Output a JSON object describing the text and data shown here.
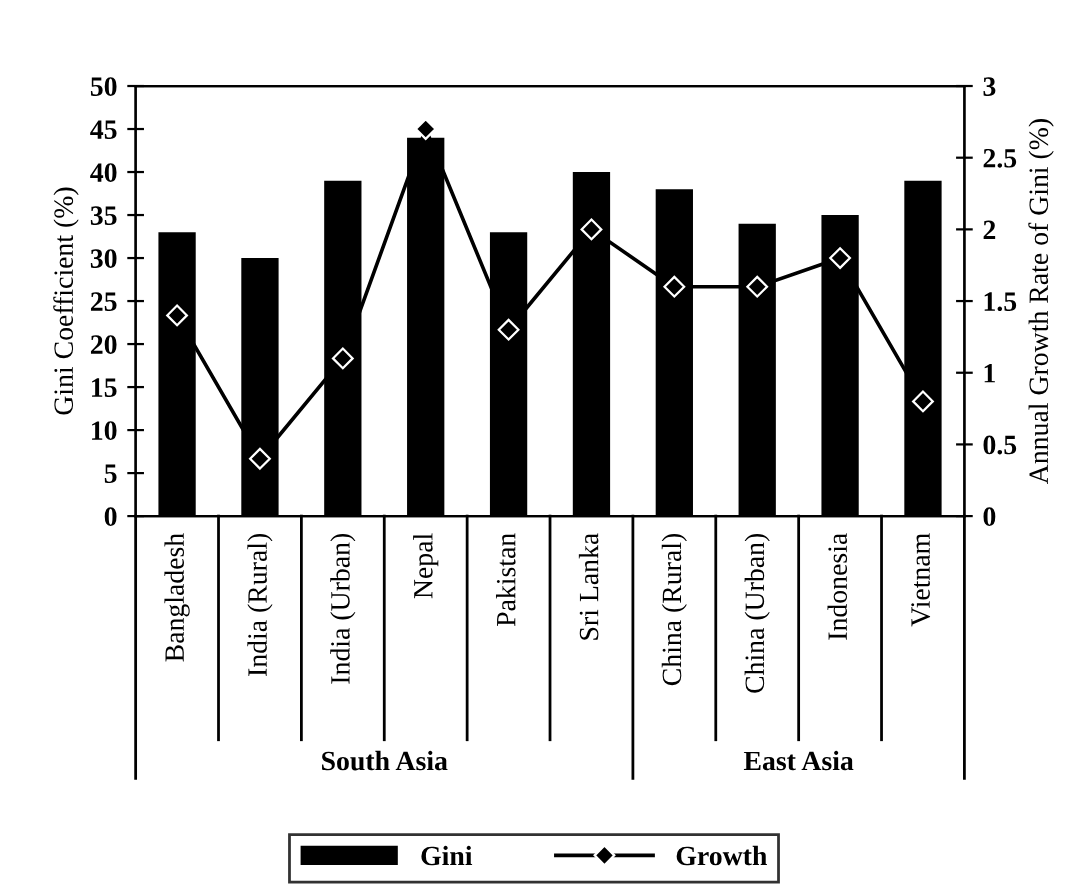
{
  "chart_data": {
    "type": "bar",
    "ylabel": "Gini Coefficient (%)",
    "y2label": "Annual Growth Rate of Gini (%)",
    "categories": [
      "Bangladesh",
      "India (Rural)",
      "India (Urban)",
      "Nepal",
      "Pakistan",
      "Sri Lanka",
      "China (Rural)",
      "China (Urban)",
      "Indonesia",
      "Vietnam"
    ],
    "series": [
      {
        "name": "Gini",
        "color": "#000000",
        "values": [
          33,
          30,
          39,
          44,
          33,
          40,
          38,
          34,
          35,
          39
        ]
      },
      {
        "name": "Growth",
        "type": "line",
        "axis": "y2",
        "color": "#000000",
        "marker": "diamond",
        "values": [
          1.4,
          0.4,
          1.1,
          2.7,
          1.3,
          2.0,
          1.6,
          1.6,
          1.8,
          0.8
        ]
      }
    ],
    "ylim": [
      0,
      50
    ],
    "yticks": [
      0,
      5,
      10,
      15,
      20,
      25,
      30,
      35,
      40,
      45,
      50
    ],
    "y2lim": [
      0,
      3
    ],
    "y2ticks": [
      0,
      0.5,
      1,
      1.5,
      2,
      2.5,
      3
    ],
    "annotations": [
      "South Asia",
      "East Asia"
    ],
    "legend": "bottom",
    "grid": false
  }
}
